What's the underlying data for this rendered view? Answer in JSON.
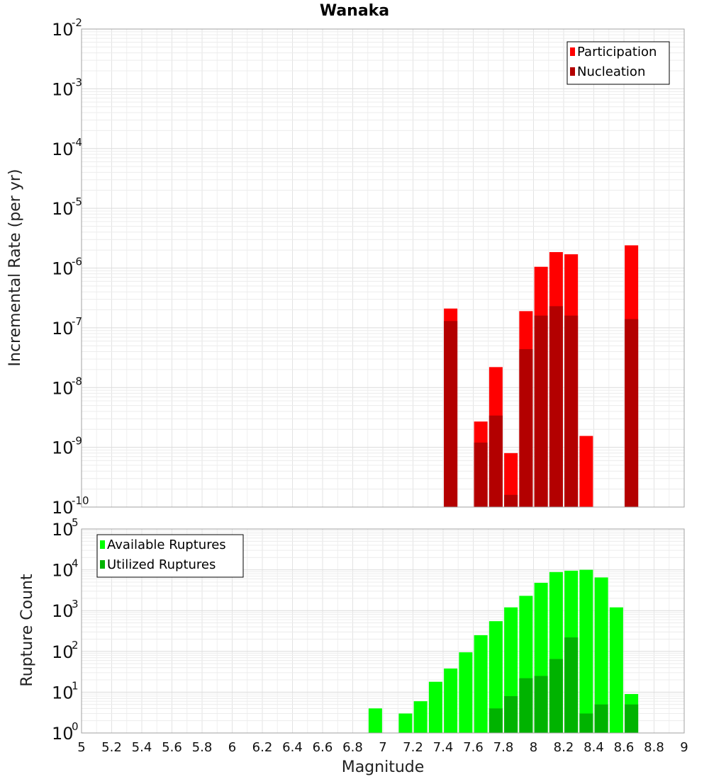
{
  "title": "Wanaka",
  "chart_data": [
    {
      "type": "bar",
      "scale": "log",
      "ylabel": "Incremental Rate (per yr)",
      "ylim_exp": [
        -10,
        -2
      ],
      "xlim": [
        5,
        9
      ],
      "legend": {
        "placement": "top-right",
        "items": [
          {
            "label": "Participation",
            "color": "#ff0000"
          },
          {
            "label": "Nucleation",
            "color": "#b30000"
          }
        ]
      },
      "series": [
        {
          "name": "Participation",
          "color": "#ff0000",
          "x": [
            7.45,
            7.65,
            7.75,
            7.85,
            7.95,
            8.05,
            8.15,
            8.25,
            8.35,
            8.65
          ],
          "values": [
            2.1e-07,
            2.7e-09,
            2.2e-08,
            8e-10,
            1.9e-07,
            1.05e-06,
            1.85e-06,
            1.7e-06,
            1.55e-09,
            2.4e-06
          ]
        },
        {
          "name": "Nucleation",
          "color": "#b30000",
          "x": [
            7.45,
            7.65,
            7.75,
            7.85,
            7.95,
            8.05,
            8.15,
            8.25,
            8.65
          ],
          "values": [
            1.3e-07,
            1.2e-09,
            3.4e-09,
            1.6e-10,
            4.4e-08,
            1.6e-07,
            2.3e-07,
            1.6e-07,
            1.4e-07
          ]
        }
      ],
      "y_tick_labels": [
        {
          "base": "10",
          "exp": "-2"
        },
        {
          "base": "10",
          "exp": "-3"
        },
        {
          "base": "10",
          "exp": "-4"
        },
        {
          "base": "10",
          "exp": "-5"
        },
        {
          "base": "10",
          "exp": "-6"
        },
        {
          "base": "10",
          "exp": "-7"
        },
        {
          "base": "10",
          "exp": "-8"
        },
        {
          "base": "10",
          "exp": "-9"
        },
        {
          "base": "10",
          "exp": "-10"
        }
      ],
      "grid": true
    },
    {
      "type": "bar",
      "scale": "log",
      "ylabel": "Rupture Count",
      "ylim_exp": [
        0,
        5
      ],
      "xlim": [
        5,
        9
      ],
      "legend": {
        "placement": "top-left",
        "items": [
          {
            "label": "Available Ruptures",
            "color": "#00ff00"
          },
          {
            "label": "Utilized Ruptures",
            "color": "#00b300"
          }
        ]
      },
      "series": [
        {
          "name": "Available Ruptures",
          "color": "#00ff00",
          "x": [
            6.95,
            7.15,
            7.25,
            7.35,
            7.45,
            7.55,
            7.65,
            7.75,
            7.85,
            7.95,
            8.05,
            8.15,
            8.25,
            8.35,
            8.45,
            8.55,
            8.65
          ],
          "values": [
            4,
            3,
            6,
            18,
            38,
            95,
            250,
            550,
            1200,
            2300,
            4800,
            8800,
            9500,
            10000,
            6500,
            1200,
            9
          ]
        },
        {
          "name": "Utilized Ruptures",
          "color": "#00b300",
          "x": [
            7.45,
            7.65,
            7.75,
            7.85,
            7.95,
            8.05,
            8.15,
            8.25,
            8.35,
            8.45,
            8.55,
            8.65
          ],
          "values": [
            1,
            1,
            4,
            8,
            22,
            25,
            65,
            220,
            3,
            5,
            1,
            5
          ]
        }
      ],
      "y_tick_labels": [
        {
          "base": "10",
          "exp": "5"
        },
        {
          "base": "10",
          "exp": "4"
        },
        {
          "base": "10",
          "exp": "3"
        },
        {
          "base": "10",
          "exp": "2"
        },
        {
          "base": "10",
          "exp": "1"
        },
        {
          "base": "10",
          "exp": "0"
        }
      ],
      "grid": true
    }
  ],
  "x_axis": {
    "label": "Magnitude",
    "ticks": [
      "5",
      "5.2",
      "5.4",
      "5.6",
      "5.8",
      "6",
      "6.2",
      "6.4",
      "6.6",
      "6.8",
      "7",
      "7.2",
      "7.4",
      "7.6",
      "7.8",
      "8",
      "8.2",
      "8.4",
      "8.6",
      "8.8",
      "9"
    ]
  }
}
